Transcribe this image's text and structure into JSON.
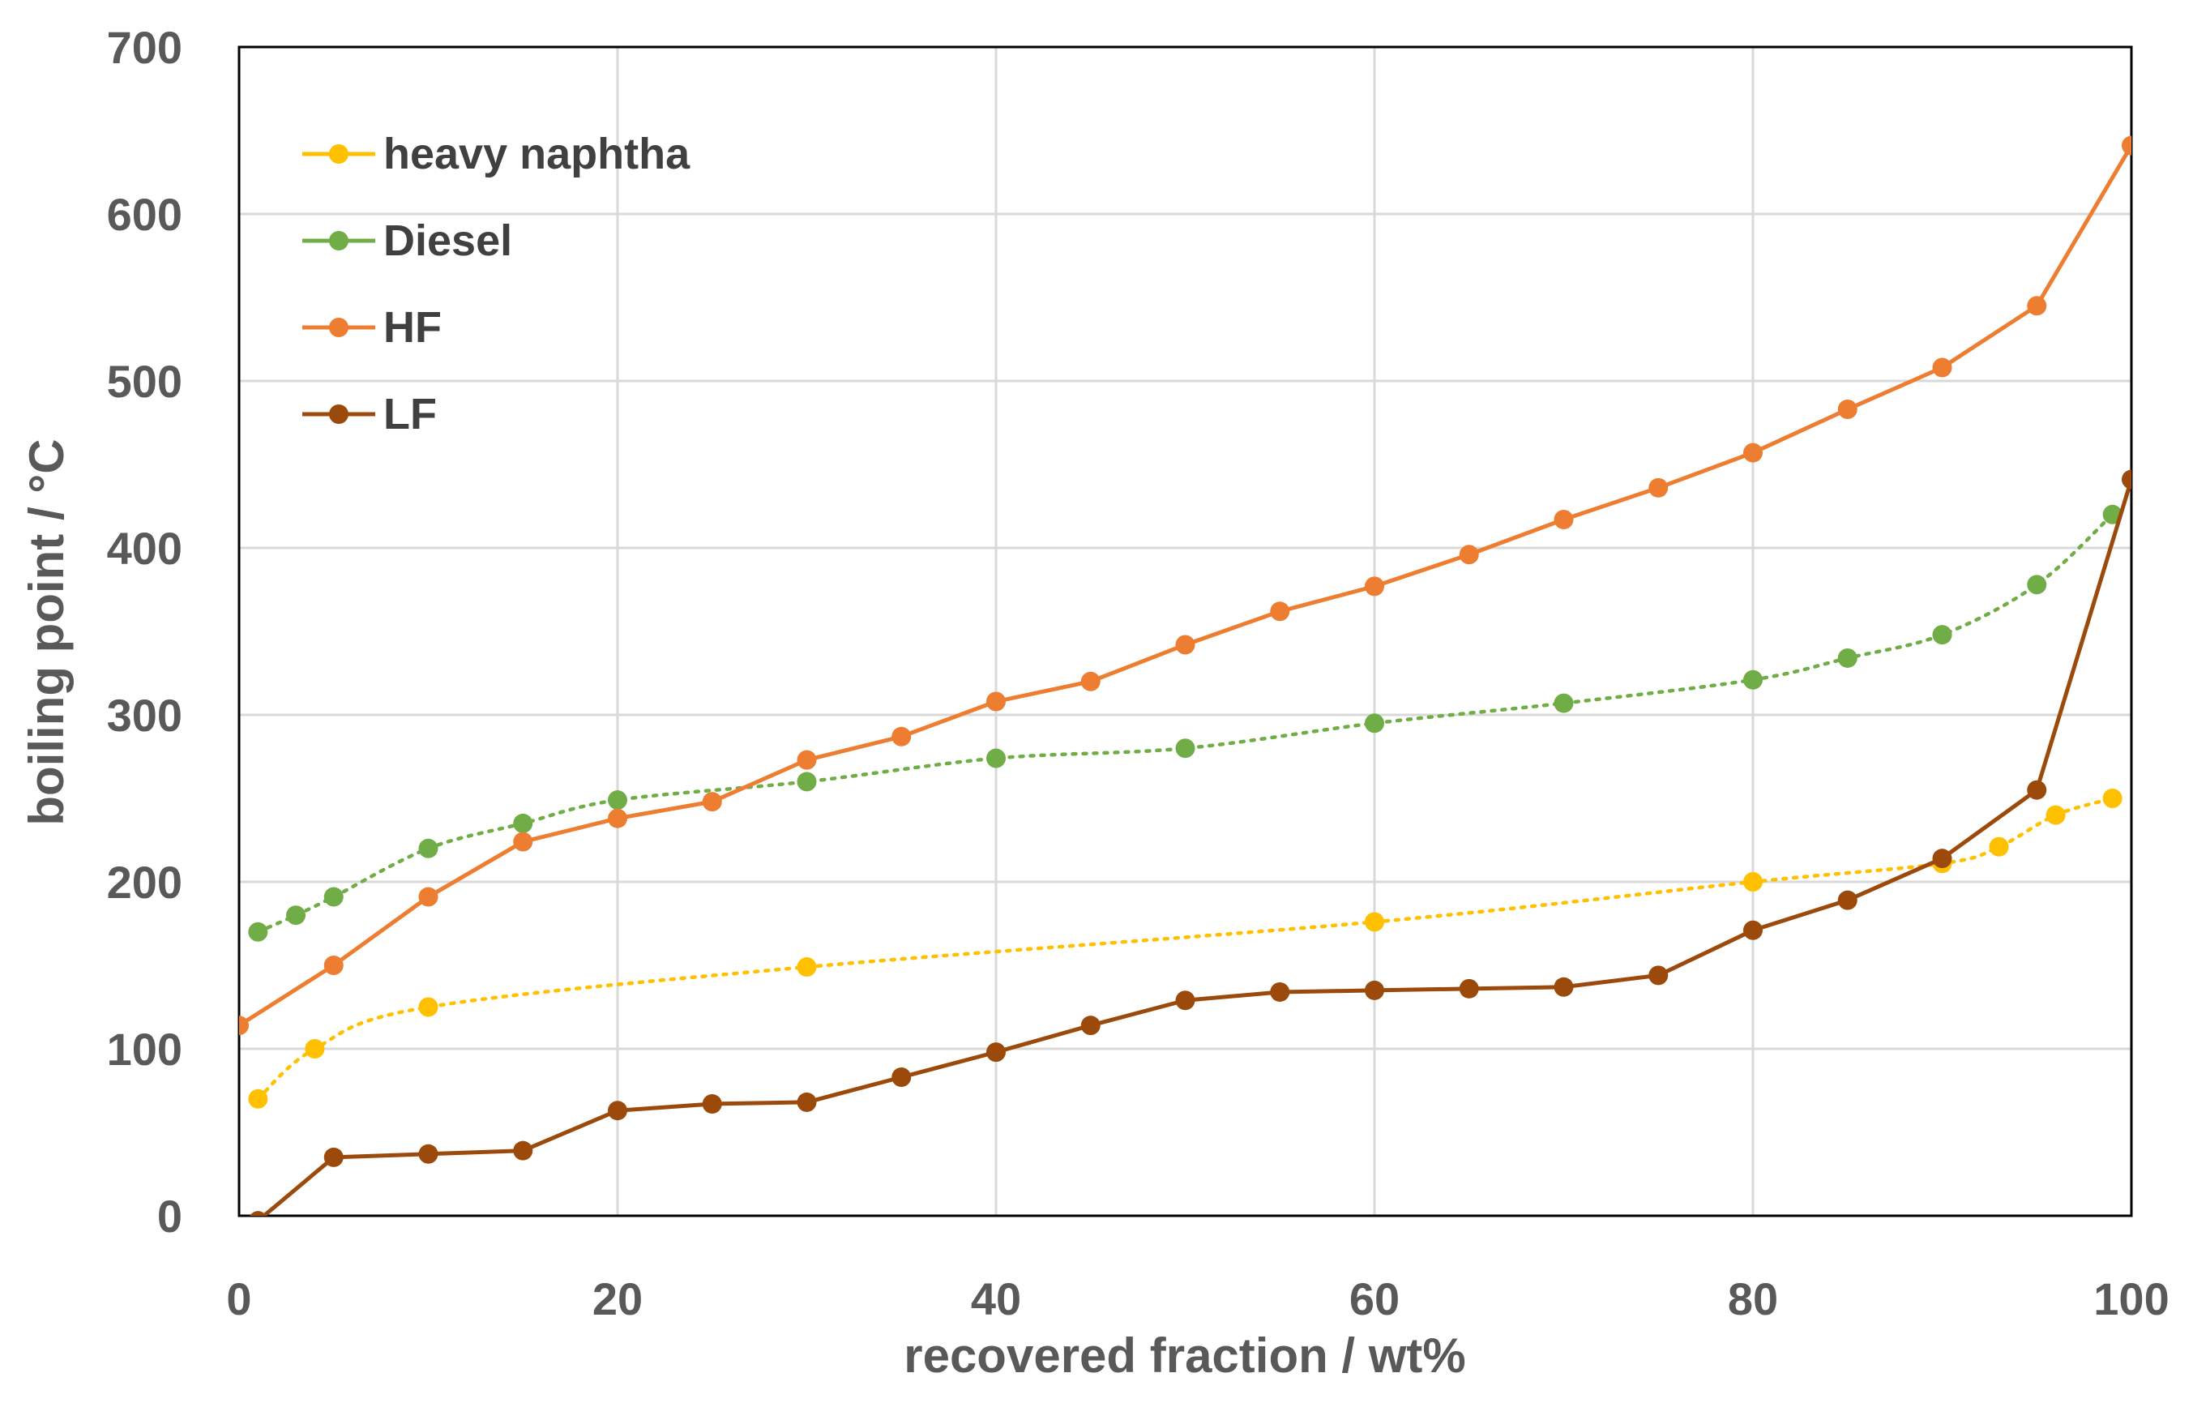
{
  "chart_data": {
    "type": "line",
    "xlabel": "recovered fraction / wt%",
    "ylabel": "boiling point / °C",
    "xlim": [
      0,
      100
    ],
    "ylim": [
      0,
      700
    ],
    "xticks": [
      0,
      20,
      40,
      60,
      80,
      100
    ],
    "yticks": [
      0,
      100,
      200,
      300,
      400,
      500,
      600,
      700
    ],
    "grid": true,
    "legend": "top-left",
    "series": [
      {
        "name": "heavy naphtha",
        "color": "#FFC000",
        "line_style": "dotted-smooth",
        "points": [
          [
            1,
            70
          ],
          [
            4,
            100
          ],
          [
            10,
            125
          ],
          [
            30,
            149
          ],
          [
            60,
            176
          ],
          [
            80,
            200
          ],
          [
            90,
            211
          ],
          [
            93,
            221
          ],
          [
            96,
            240
          ],
          [
            99,
            250
          ]
        ]
      },
      {
        "name": "Diesel",
        "color": "#70AD47",
        "line_style": "dotted-smooth",
        "points": [
          [
            1,
            170
          ],
          [
            3,
            180
          ],
          [
            5,
            191
          ],
          [
            10,
            220
          ],
          [
            15,
            235
          ],
          [
            20,
            249
          ],
          [
            30,
            260
          ],
          [
            40,
            274
          ],
          [
            50,
            280
          ],
          [
            60,
            295
          ],
          [
            70,
            307
          ],
          [
            80,
            321
          ],
          [
            85,
            334
          ],
          [
            90,
            348
          ],
          [
            95,
            378
          ],
          [
            99,
            420
          ]
        ]
      },
      {
        "name": "HF",
        "color": "#ED7D31",
        "line_style": "solid",
        "points": [
          [
            0,
            114
          ],
          [
            5,
            150
          ],
          [
            10,
            191
          ],
          [
            15,
            224
          ],
          [
            20,
            238
          ],
          [
            25,
            248
          ],
          [
            30,
            273
          ],
          [
            35,
            287
          ],
          [
            40,
            308
          ],
          [
            45,
            320
          ],
          [
            50,
            342
          ],
          [
            55,
            362
          ],
          [
            60,
            377
          ],
          [
            65,
            396
          ],
          [
            70,
            417
          ],
          [
            75,
            436
          ],
          [
            80,
            457
          ],
          [
            85,
            483
          ],
          [
            90,
            508
          ],
          [
            95,
            545
          ],
          [
            100,
            641
          ]
        ]
      },
      {
        "name": "LF",
        "color": "#9C4A0B",
        "line_style": "solid",
        "points": [
          [
            1,
            -3
          ],
          [
            5,
            35
          ],
          [
            10,
            37
          ],
          [
            15,
            39
          ],
          [
            20,
            63
          ],
          [
            25,
            67
          ],
          [
            30,
            68
          ],
          [
            35,
            83
          ],
          [
            40,
            98
          ],
          [
            45,
            114
          ],
          [
            50,
            129
          ],
          [
            55,
            134
          ],
          [
            60,
            135
          ],
          [
            65,
            136
          ],
          [
            70,
            137
          ],
          [
            75,
            144
          ],
          [
            80,
            171
          ],
          [
            85,
            189
          ],
          [
            90,
            214
          ],
          [
            95,
            255
          ],
          [
            100,
            441
          ]
        ]
      }
    ]
  }
}
